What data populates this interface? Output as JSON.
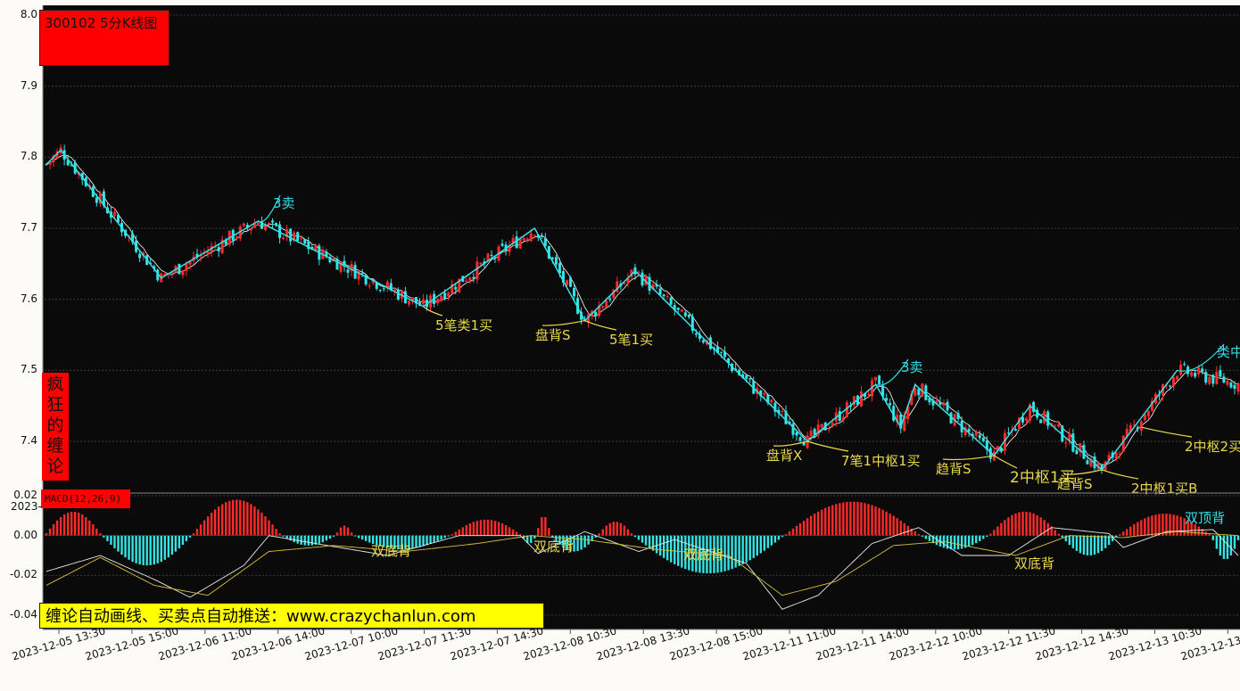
{
  "header": {
    "title": "300102 5分K线图",
    "side_banner": [
      "疯",
      "狂",
      "的",
      "缠",
      "论"
    ],
    "macd_label": "MACD(12,26,9)",
    "promo": "缠论自动画线、买卖点自动推送：www.crazychanlun.com",
    "cut_date": "2023-"
  },
  "colors": {
    "background": "#0a0a0a",
    "up": "#ff2a2a",
    "down": "#33e5e5",
    "stroke_line": "#36e2ea",
    "ma_line": "#ffffff",
    "annotation_yellow": "#e8d84a",
    "annotation_cyan": "#2fe0e8"
  },
  "chart_data": [
    {
      "type": "candlestick",
      "title": "300102 5分K线图",
      "ylim": [
        7.35,
        8.0
      ],
      "yticks": [
        "8.0",
        "7.9",
        "7.8",
        "7.7",
        "7.6",
        "7.5",
        "7.4"
      ],
      "xticks": [
        "2023-12-05 13:30",
        "2023-12-05 15:00",
        "2023-12-06 11:00",
        "2023-12-06 14:00",
        "2023-12-07 10:00",
        "2023-12-07 11:30",
        "2023-12-07 14:30",
        "2023-12-08 10:30",
        "2023-12-08 13:30",
        "2023-12-08 15:00",
        "2023-12-11 11:00",
        "2023-12-11 14:00",
        "2023-12-12 10:00",
        "2023-12-12 11:30",
        "2023-12-12 14:30",
        "2023-12-13 10:30",
        "2023-12-13"
      ],
      "bi_stroke": [
        [
          0,
          7.79
        ],
        [
          4,
          7.81
        ],
        [
          32,
          7.63
        ],
        [
          59,
          7.71
        ],
        [
          105,
          7.59
        ],
        [
          136,
          7.7
        ],
        [
          150,
          7.57
        ],
        [
          164,
          7.64
        ],
        [
          212,
          7.4
        ],
        [
          231,
          7.48
        ],
        [
          238,
          7.42
        ],
        [
          242,
          7.48
        ],
        [
          264,
          7.38
        ],
        [
          274,
          7.45
        ],
        [
          294,
          7.36
        ],
        [
          315,
          7.5
        ]
      ],
      "annotations": [
        {
          "text": "3卖",
          "color": "cyan",
          "x": 59,
          "y": 7.71
        },
        {
          "text": "5笔类1买",
          "color": "yellow",
          "x": 105,
          "y": 7.59
        },
        {
          "text": "盘背S",
          "color": "yellow",
          "x": 150,
          "y": 7.57
        },
        {
          "text": "5笔1买",
          "color": "yellow",
          "x": 150,
          "y": 7.57
        },
        {
          "text": "3卖",
          "color": "cyan",
          "x": 231,
          "y": 7.48
        },
        {
          "text": "盘背X",
          "color": "yellow",
          "x": 212,
          "y": 7.4
        },
        {
          "text": "7笔1中枢1买",
          "color": "yellow",
          "x": 212,
          "y": 7.4
        },
        {
          "text": "趋背S",
          "color": "yellow",
          "x": 264,
          "y": 7.38
        },
        {
          "text": "2中枢1买",
          "color": "yellow",
          "x": 264,
          "y": 7.38
        },
        {
          "text": "趋背S",
          "color": "yellow",
          "x": 294,
          "y": 7.36
        },
        {
          "text": "2中枢1买B",
          "color": "yellow",
          "x": 294,
          "y": 7.36
        },
        {
          "text": "2中枢2买",
          "color": "yellow",
          "x": 305,
          "y": 7.42
        },
        {
          "text": "类中",
          "color": "cyan",
          "x": 315,
          "y": 7.5
        }
      ]
    },
    {
      "type": "bar",
      "title": "MACD(12,26,9)",
      "ylim": [
        -0.04,
        0.02
      ],
      "yticks": [
        "0.02",
        "0.00",
        "-0.02",
        "-0.04"
      ],
      "segments": [
        {
          "from": 0,
          "to": 15,
          "sign": 1,
          "peak": 0.012
        },
        {
          "from": 16,
          "to": 40,
          "sign": -1,
          "peak": 0.015
        },
        {
          "from": 41,
          "to": 65,
          "sign": 1,
          "peak": 0.018
        },
        {
          "from": 66,
          "to": 80,
          "sign": -1,
          "peak": 0.005
        },
        {
          "from": 81,
          "to": 85,
          "sign": 1,
          "peak": 0.005
        },
        {
          "from": 86,
          "to": 112,
          "sign": -1,
          "peak": 0.007
        },
        {
          "from": 113,
          "to": 132,
          "sign": 1,
          "peak": 0.008
        },
        {
          "from": 133,
          "to": 136,
          "sign": -1,
          "peak": 0.004
        },
        {
          "from": 137,
          "to": 140,
          "sign": 1,
          "peak": 0.01
        },
        {
          "from": 141,
          "to": 153,
          "sign": -1,
          "peak": 0.008
        },
        {
          "from": 154,
          "to": 163,
          "sign": 1,
          "peak": 0.007
        },
        {
          "from": 164,
          "to": 205,
          "sign": -1,
          "peak": 0.019
        },
        {
          "from": 206,
          "to": 243,
          "sign": 1,
          "peak": 0.017
        },
        {
          "from": 244,
          "to": 262,
          "sign": -1,
          "peak": 0.007
        },
        {
          "from": 263,
          "to": 282,
          "sign": 1,
          "peak": 0.012
        },
        {
          "from": 283,
          "to": 298,
          "sign": -1,
          "peak": 0.01
        },
        {
          "from": 299,
          "to": 324,
          "sign": 1,
          "peak": 0.011
        },
        {
          "from": 325,
          "to": 332,
          "sign": -1,
          "peak": 0.012
        }
      ],
      "dif_points": [
        [
          0,
          -0.018
        ],
        [
          15,
          -0.01
        ],
        [
          30,
          -0.022
        ],
        [
          40,
          -0.031
        ],
        [
          55,
          -0.015
        ],
        [
          62,
          0.0
        ],
        [
          75,
          -0.004
        ],
        [
          95,
          -0.01
        ],
        [
          115,
          0.0
        ],
        [
          132,
          0.0
        ],
        [
          137,
          -0.009
        ],
        [
          150,
          0.002
        ],
        [
          165,
          -0.008
        ],
        [
          175,
          -0.002
        ],
        [
          195,
          -0.014
        ],
        [
          205,
          -0.037
        ],
        [
          215,
          -0.03
        ],
        [
          230,
          -0.004
        ],
        [
          243,
          0.004
        ],
        [
          255,
          -0.01
        ],
        [
          268,
          -0.01
        ],
        [
          280,
          0.004
        ],
        [
          296,
          0.001
        ],
        [
          300,
          -0.006
        ],
        [
          312,
          0.002
        ],
        [
          325,
          0.003
        ],
        [
          332,
          -0.01
        ]
      ],
      "dea_points": [
        [
          0,
          -0.025
        ],
        [
          15,
          -0.011
        ],
        [
          30,
          -0.025
        ],
        [
          45,
          -0.03
        ],
        [
          62,
          -0.008
        ],
        [
          80,
          -0.005
        ],
        [
          100,
          -0.008
        ],
        [
          120,
          -0.004
        ],
        [
          135,
          0.0
        ],
        [
          150,
          -0.002
        ],
        [
          170,
          -0.007
        ],
        [
          190,
          -0.01
        ],
        [
          205,
          -0.03
        ],
        [
          220,
          -0.023
        ],
        [
          236,
          -0.005
        ],
        [
          250,
          -0.003
        ],
        [
          270,
          -0.01
        ],
        [
          285,
          0.0
        ],
        [
          300,
          -0.001
        ],
        [
          315,
          0.002
        ],
        [
          332,
          0.0
        ]
      ],
      "annotations": [
        {
          "text": "双底背",
          "x": 92,
          "y": -0.007
        },
        {
          "text": "双底背",
          "x": 137,
          "y": -0.004
        },
        {
          "text": "双底背",
          "x": 178,
          "y": -0.008
        },
        {
          "text": "双底背",
          "x": 268,
          "y": -0.011
        },
        {
          "text": "双顶背",
          "x": 318,
          "y": 0.007
        }
      ]
    }
  ]
}
